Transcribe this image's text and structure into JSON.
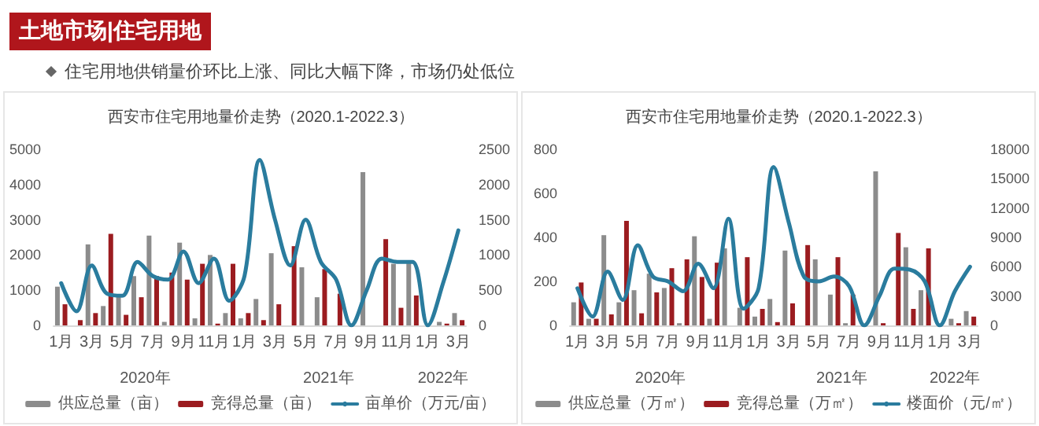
{
  "chart_data": [
    {
      "type": "other",
      "title": "土地市场|住宅用地",
      "annotations": [
        "住宅用地供销量价环比上涨、同比大幅下降，市场仍处低位"
      ]
    },
    {
      "type": "bar",
      "title": "西安市住宅用地量价走势（2020.1-2022.3）",
      "categories": [
        "1月",
        null,
        "3月",
        null,
        "5月",
        null,
        "7月",
        null,
        "9月",
        null,
        "11月",
        null,
        "1月",
        null,
        "3月",
        null,
        "5月",
        null,
        "7月",
        null,
        "9月",
        null,
        "11月",
        null,
        "1月",
        null,
        "3月"
      ],
      "series": [
        {
          "name": "供应总量（亩）",
          "color": "#8c8c8c",
          "values": [
            1100,
            0,
            2300,
            550,
            850,
            1400,
            2550,
            100,
            2350,
            200,
            2000,
            350,
            200,
            750,
            2050,
            0,
            1650,
            800,
            0,
            0,
            4350,
            0,
            1750,
            1800,
            0,
            100,
            350
          ]
        },
        {
          "name": "竞得总量（亩）",
          "color": "#9b1c20",
          "values": [
            600,
            150,
            350,
            2600,
            300,
            800,
            1400,
            1500,
            1300,
            1750,
            50,
            1750,
            350,
            150,
            600,
            2250,
            0,
            1600,
            900,
            0,
            0,
            2450,
            500,
            850,
            0,
            50,
            150
          ]
        },
        {
          "name": "亩单价（万元/亩）",
          "type": "line",
          "axis": "y2",
          "color": "#2a7c9e",
          "values": [
            600,
            200,
            850,
            450,
            420,
            900,
            700,
            650,
            1050,
            600,
            950,
            350,
            700,
            2350,
            1500,
            850,
            1500,
            900,
            650,
            0,
            500,
            950,
            900,
            900,
            0,
            600,
            1350
          ]
        }
      ],
      "ylim": [
        0,
        5000
      ],
      "yticks": [
        0,
        1000,
        2000,
        3000,
        4000,
        5000
      ],
      "y2lim": [
        0,
        2500
      ],
      "y2ticks": [
        0,
        500,
        1000,
        1500,
        2000,
        2500
      ],
      "grid": false,
      "legend": "bottom",
      "marker": "none",
      "line_style": "solid",
      "annotations": [
        "2020年",
        "2021年",
        "2022年"
      ]
    },
    {
      "type": "bar",
      "title": "西安市住宅用地量价走势（2020.1-2022.3）",
      "categories": [
        "1月",
        null,
        "3月",
        null,
        "5月",
        null,
        "7月",
        null,
        "9月",
        null,
        "11月",
        null,
        "1月",
        null,
        "3月",
        null,
        "5月",
        null,
        "7月",
        null,
        "9月",
        null,
        "11月",
        null,
        "1月",
        null,
        "3月"
      ],
      "series": [
        {
          "name": "供应总量（万㎡）",
          "color": "#8c8c8c",
          "values": [
            105,
            30,
            410,
            105,
            160,
            235,
            170,
            10,
            405,
            30,
            350,
            80,
            40,
            120,
            340,
            0,
            300,
            140,
            10,
            0,
            700,
            0,
            355,
            160,
            0,
            30,
            65
          ]
        },
        {
          "name": "竞得总量（万㎡）",
          "color": "#9b1c20",
          "values": [
            195,
            30,
            50,
            475,
            55,
            150,
            260,
            300,
            220,
            285,
            0,
            310,
            75,
            15,
            100,
            365,
            0,
            310,
            140,
            0,
            10,
            420,
            75,
            350,
            0,
            10,
            40
          ]
        },
        {
          "name": "楼面价（元/㎡）",
          "type": "line",
          "axis": "y2",
          "color": "#2a7c9e",
          "values": [
            3800,
            900,
            5500,
            2600,
            8200,
            5000,
            4500,
            3500,
            6300,
            3800,
            10900,
            1700,
            3800,
            16200,
            10500,
            5000,
            4500,
            5000,
            4000,
            0,
            3000,
            5800,
            5700,
            4500,
            0,
            3500,
            6000
          ]
        }
      ],
      "ylim": [
        0,
        800
      ],
      "yticks": [
        0,
        200,
        400,
        600,
        800
      ],
      "y2lim": [
        0,
        18000
      ],
      "y2ticks": [
        0,
        3000,
        6000,
        9000,
        12000,
        15000,
        18000
      ],
      "grid": false,
      "legend": "bottom",
      "marker": "none",
      "line_style": "solid",
      "annotations": [
        "2020年",
        "2021年",
        "2022年"
      ]
    }
  ]
}
